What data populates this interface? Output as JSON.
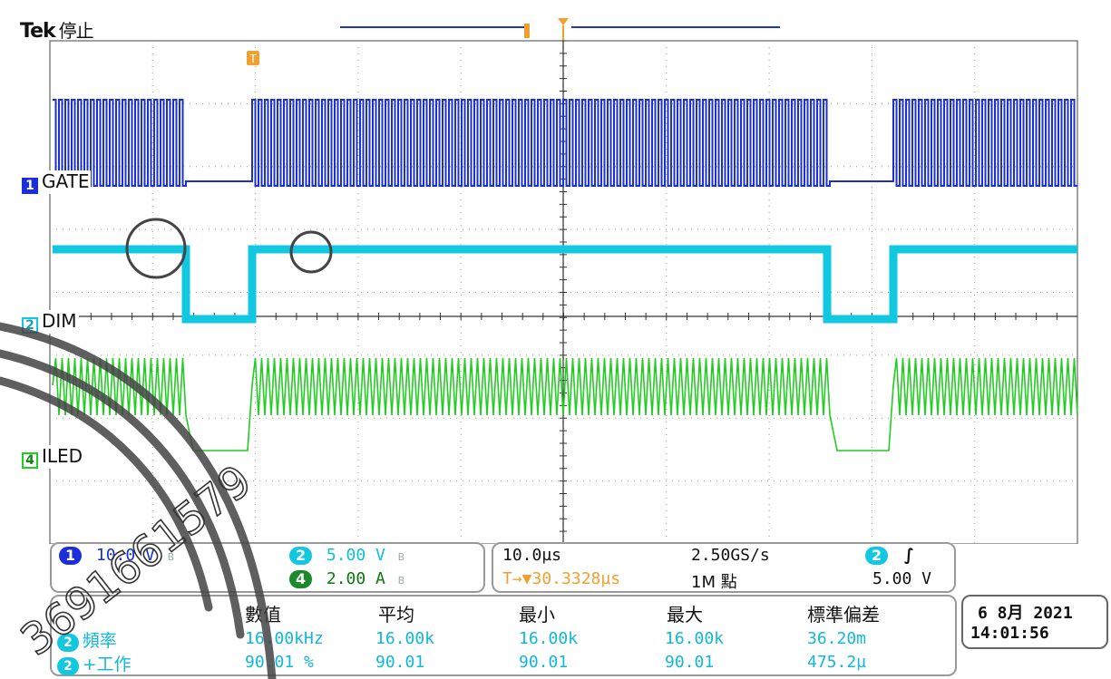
{
  "header": {
    "brand": "Tek",
    "state": "停止"
  },
  "trigger_marker": "T",
  "channels": [
    {
      "num": "1",
      "label": "GATE",
      "color": "#1a2fd8"
    },
    {
      "num": "2",
      "label": "DIM",
      "color": "#11c8e0"
    },
    {
      "num": "4",
      "label": "ILED",
      "color": "#22cc22"
    }
  ],
  "scale_panel": {
    "ch1": {
      "num": "1",
      "value": "10.0 V",
      "bw": "B",
      "color": "#1a2fd8"
    },
    "ch2": {
      "num": "2",
      "value": "5.00 V",
      "bw": "B",
      "color": "#11c8e0"
    },
    "ch4": {
      "num": "4",
      "value": "2.00 A",
      "bw": "B",
      "color": "#22aa22"
    }
  },
  "timebase_panel": {
    "time_div": "10.0µs",
    "sample_rate": "2.50GS/s",
    "trigger_pos": "T→▼30.3328µs",
    "record_length": "1M 點",
    "trig_channel": "2",
    "trig_slope": "∫",
    "trig_level": "5.00 V"
  },
  "measurements": {
    "headers": [
      "數值",
      "平均",
      "最小",
      "最大",
      "標準偏差"
    ],
    "rows": [
      {
        "channel": "2",
        "name": "頻率",
        "values": [
          "16.00kHz",
          "16.00k",
          "16.00k",
          "16.00k",
          "36.20m"
        ]
      },
      {
        "channel": "2",
        "name": "+工作",
        "values": [
          "90.01 %",
          "90.01",
          "90.01",
          "90.01",
          "475.2µ"
        ]
      }
    ]
  },
  "datetime": {
    "date": "6 8月 2021",
    "time": "14:01:56"
  },
  "watermark_text": "3691661579",
  "colors": {
    "gate": "#1a2fd8",
    "dim": "#11c8e0",
    "iled": "#22cc22",
    "trigger": "#f0a030",
    "grid": "#555555"
  }
}
